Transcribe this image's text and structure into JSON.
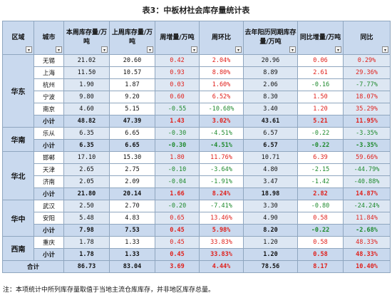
{
  "title": "表3：中板材社会库存量统计表",
  "headers": {
    "region": "区域",
    "city": "城市",
    "this_week": "本周库存量/万吨",
    "last_week": "上周库存量/万吨",
    "weekly_change": "周增量/万吨",
    "weekly_ratio": "周环比",
    "last_year": "去年阳历同期库存量/万吨",
    "yoy_change": "同比增量/万吨",
    "yoy_ratio": "同比"
  },
  "filter_icon": "▾",
  "regions": [
    {
      "name": "华东",
      "rows": [
        {
          "city": "无锡",
          "v1": "21.02",
          "v2": "20.60",
          "v3": "0.42",
          "v4": "2.04%",
          "v5": "20.96",
          "v6": "0.06",
          "v7": "0.29%",
          "c3": "red",
          "c4": "red",
          "c6": "red",
          "c7": "red"
        },
        {
          "city": "上海",
          "v1": "11.50",
          "v2": "10.57",
          "v3": "0.93",
          "v4": "8.80%",
          "v5": "8.89",
          "v6": "2.61",
          "v7": "29.36%",
          "c3": "red",
          "c4": "red",
          "c6": "red",
          "c7": "red"
        },
        {
          "city": "杭州",
          "v1": "1.90",
          "v2": "1.87",
          "v3": "0.03",
          "v4": "1.60%",
          "v5": "2.06",
          "v6": "-0.16",
          "v7": "-7.77%",
          "c3": "red",
          "c4": "red",
          "c6": "green",
          "c7": "green"
        },
        {
          "city": "宁波",
          "v1": "9.80",
          "v2": "9.20",
          "v3": "0.60",
          "v4": "6.52%",
          "v5": "8.30",
          "v6": "1.50",
          "v7": "18.07%",
          "c3": "red",
          "c4": "red",
          "c6": "red",
          "c7": "red"
        },
        {
          "city": "南京",
          "v1": "4.60",
          "v2": "5.15",
          "v3": "-0.55",
          "v4": "-10.68%",
          "v5": "3.40",
          "v6": "1.20",
          "v7": "35.29%",
          "c3": "green",
          "c4": "green",
          "c6": "red",
          "c7": "red"
        }
      ],
      "subtotal": {
        "city": "小计",
        "v1": "48.82",
        "v2": "47.39",
        "v3": "1.43",
        "v4": "3.02%",
        "v5": "43.61",
        "v6": "5.21",
        "v7": "11.95%",
        "c3": "red",
        "c4": "red",
        "c6": "red",
        "c7": "red"
      }
    },
    {
      "name": "华南",
      "rows": [
        {
          "city": "乐从",
          "v1": "6.35",
          "v2": "6.65",
          "v3": "-0.30",
          "v4": "-4.51%",
          "v5": "6.57",
          "v6": "-0.22",
          "v7": "-3.35%",
          "c3": "green",
          "c4": "green",
          "c6": "green",
          "c7": "green"
        }
      ],
      "subtotal": {
        "city": "小计",
        "v1": "6.35",
        "v2": "6.65",
        "v3": "-0.30",
        "v4": "-4.51%",
        "v5": "6.57",
        "v6": "-0.22",
        "v7": "-3.35%",
        "c3": "green",
        "c4": "green",
        "c6": "green",
        "c7": "green"
      }
    },
    {
      "name": "华北",
      "rows": [
        {
          "city": "邯郸",
          "v1": "17.10",
          "v2": "15.30",
          "v3": "1.80",
          "v4": "11.76%",
          "v5": "10.71",
          "v6": "6.39",
          "v7": "59.66%",
          "c3": "red",
          "c4": "red",
          "c6": "red",
          "c7": "red"
        },
        {
          "city": "天津",
          "v1": "2.65",
          "v2": "2.75",
          "v3": "-0.10",
          "v4": "-3.64%",
          "v5": "4.80",
          "v6": "-2.15",
          "v7": "-44.79%",
          "c3": "green",
          "c4": "green",
          "c6": "green",
          "c7": "green"
        },
        {
          "city": "济南",
          "v1": "2.05",
          "v2": "2.09",
          "v3": "-0.04",
          "v4": "-1.91%",
          "v5": "3.47",
          "v6": "-1.42",
          "v7": "-40.88%",
          "c3": "green",
          "c4": "green",
          "c6": "green",
          "c7": "green"
        }
      ],
      "subtotal": {
        "city": "小计",
        "v1": "21.80",
        "v2": "20.14",
        "v3": "1.66",
        "v4": "8.24%",
        "v5": "18.98",
        "v6": "2.82",
        "v7": "14.87%",
        "c3": "red",
        "c4": "red",
        "c6": "red",
        "c7": "red"
      }
    },
    {
      "name": "华中",
      "rows": [
        {
          "city": "武汉",
          "v1": "2.50",
          "v2": "2.70",
          "v3": "-0.20",
          "v4": "-7.41%",
          "v5": "3.30",
          "v6": "-0.80",
          "v7": "-24.24%",
          "c3": "green",
          "c4": "green",
          "c6": "green",
          "c7": "green"
        },
        {
          "city": "安阳",
          "v1": "5.48",
          "v2": "4.83",
          "v3": "0.65",
          "v4": "13.46%",
          "v5": "4.90",
          "v6": "0.58",
          "v7": "11.84%",
          "c3": "red",
          "c4": "red",
          "c6": "red",
          "c7": "red"
        }
      ],
      "subtotal": {
        "city": "小计",
        "v1": "7.98",
        "v2": "7.53",
        "v3": "0.45",
        "v4": "5.98%",
        "v5": "8.20",
        "v6": "-0.22",
        "v7": "-2.68%",
        "c3": "red",
        "c4": "red",
        "c6": "green",
        "c7": "green"
      }
    },
    {
      "name": "西南",
      "rows": [
        {
          "city": "重庆",
          "v1": "1.78",
          "v2": "1.33",
          "v3": "0.45",
          "v4": "33.83%",
          "v5": "1.20",
          "v6": "0.58",
          "v7": "48.33%",
          "c3": "red",
          "c4": "red",
          "c6": "red",
          "c7": "red"
        }
      ],
      "subtotal": {
        "city": "小计",
        "v1": "1.78",
        "v2": "1.33",
        "v3": "0.45",
        "v4": "33.83%",
        "v5": "1.20",
        "v6": "0.58",
        "v7": "48.33%",
        "c3": "red",
        "c4": "red",
        "c6": "red",
        "c7": "red"
      }
    }
  ],
  "total": {
    "label": "合计",
    "v1": "86.73",
    "v2": "83.04",
    "v3": "3.69",
    "v4": "4.44%",
    "v5": "78.56",
    "v6": "8.17",
    "v7": "10.40%",
    "c3": "red",
    "c4": "red",
    "c6": "red",
    "c7": "red"
  },
  "note": "注：本项统计中所列库存量取值于当地主流仓库库存，并非地区库存总量。",
  "colors": {
    "header_bg": "#c9d9ee",
    "alt_bg": "#dde7f3",
    "positive": "#e0201b",
    "negative": "#1f8a2e",
    "border": "#8fa6bf"
  }
}
